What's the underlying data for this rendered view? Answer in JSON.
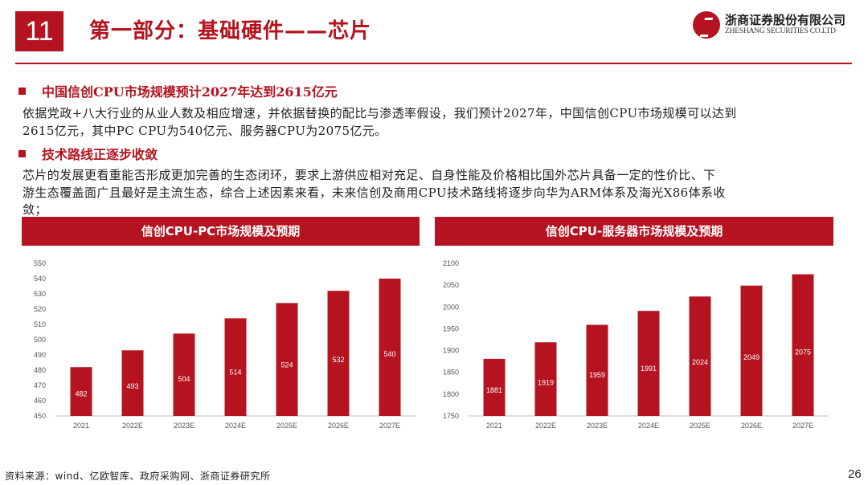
{
  "header": {
    "page_badge": "11",
    "title": "第一部分：基础硬件——芯片",
    "logo_cn": "浙商证券股份有限公司",
    "logo_en": "ZHESHANG SECURITIES CO.LTD"
  },
  "section1": {
    "heading": "中国信创CPU市场规模预计2027年达到2615亿元",
    "body_line1": "依据党政+八大行业的从业人数及相应增速，并依据替换的配比与渗透率假设，我们预计2027年，中国信创CPU市场规模可以达到",
    "body_line2": "2615亿元，其中PC CPU为540亿元、服务器CPU为2075亿元。"
  },
  "section2": {
    "heading": "技术路线正逐步收敛",
    "body_line1": "芯片的发展更看重能否形成更加完善的生态闭环，要求上游供应相对充足、自身性能及价格相比国外芯片具备一定的性价比、下",
    "body_line2": "游生态覆盖面广且最好是主流生态，综合上述因素来看，未来信创及商用CPU技术路线将逐步向华为ARM体系及海光X86体系收",
    "body_line3": "敛；"
  },
  "chart_data": [
    {
      "type": "bar",
      "title": "信创CPU-PC市场规模及预期",
      "categories": [
        "2021",
        "2022E",
        "2023E",
        "2024E",
        "2025E",
        "2026E",
        "2027E"
      ],
      "values": [
        482,
        493,
        504,
        514,
        524,
        532,
        540
      ],
      "ylim": [
        450,
        550
      ],
      "yticks": [
        450,
        460,
        470,
        480,
        490,
        500,
        510,
        520,
        530,
        540,
        550
      ],
      "xlabel": "",
      "ylabel": "",
      "color": "#b4131f"
    },
    {
      "type": "bar",
      "title": "信创CPU-服务器市场规模及预期",
      "categories": [
        "2021",
        "2022E",
        "2023E",
        "2024E",
        "2025E",
        "2026E",
        "2027E"
      ],
      "values": [
        1881,
        1919,
        1959,
        1991,
        2024,
        2049,
        2075
      ],
      "ylim": [
        1750,
        2100
      ],
      "yticks": [
        1750,
        1800,
        1850,
        1900,
        1950,
        2000,
        2050,
        2100
      ],
      "xlabel": "",
      "ylabel": "",
      "color": "#b4131f"
    }
  ],
  "footer": {
    "source": "资料来源：wind、亿欧智库、政府采购网、浙商证券研究所",
    "page_number": "26"
  },
  "colors": {
    "accent": "#b4131f"
  }
}
